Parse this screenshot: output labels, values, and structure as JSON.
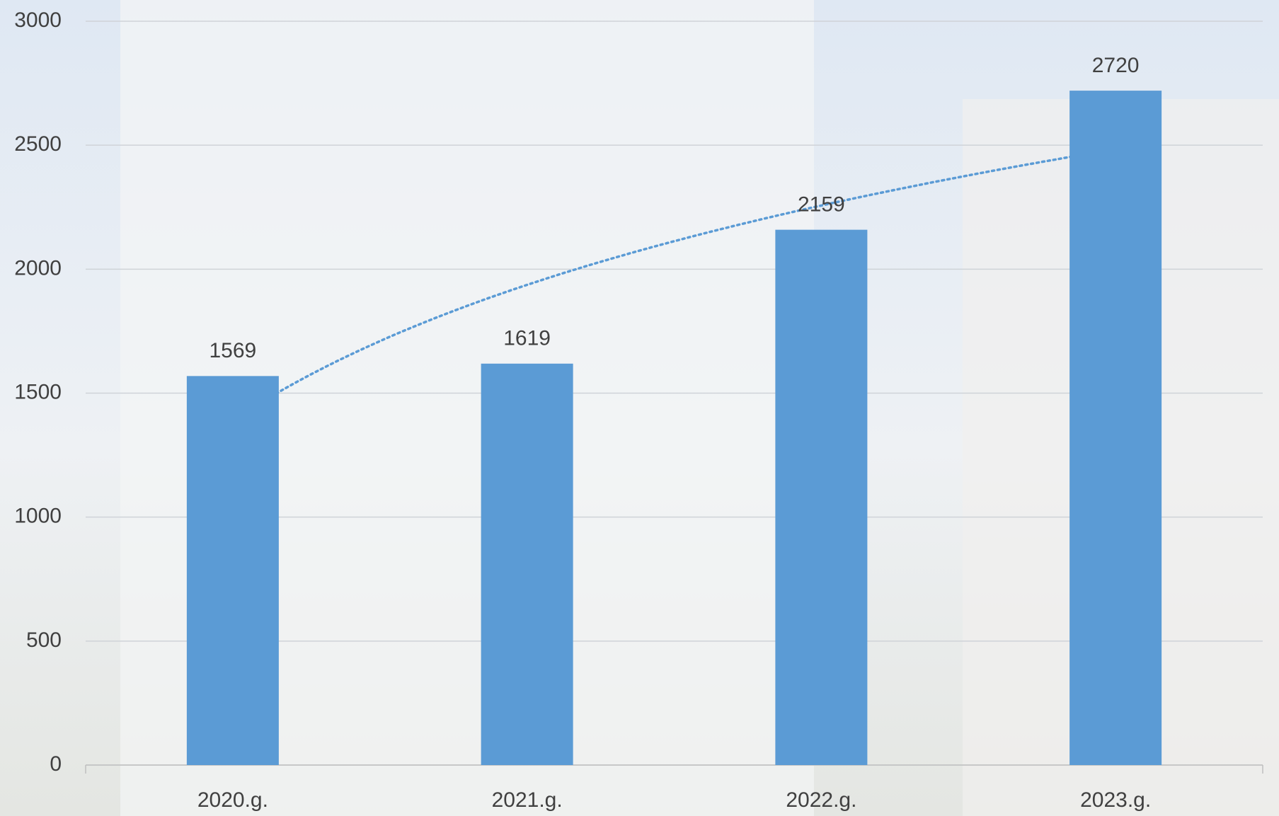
{
  "chart_data": {
    "type": "bar",
    "categories": [
      "2020.g.",
      "2021.g.",
      "2022.g.",
      "2023.g."
    ],
    "values": [
      1569,
      1619,
      2159,
      2720
    ],
    "color": "#5b9bd5",
    "ylim": [
      0,
      3000
    ],
    "yticks": [
      0,
      500,
      1000,
      1500,
      2000,
      2500,
      3000
    ],
    "grid": true,
    "trendline": "logarithmic"
  }
}
